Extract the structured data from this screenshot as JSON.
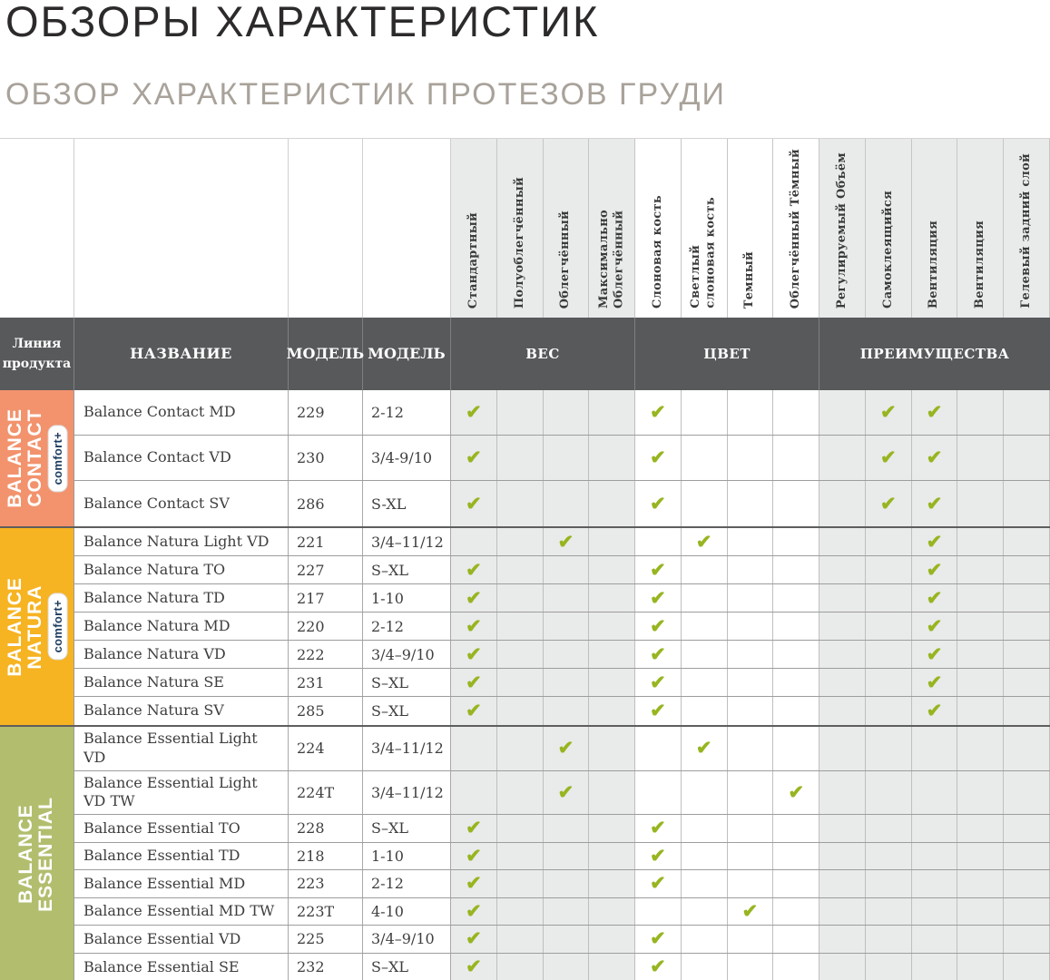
{
  "page": {
    "title": "ОБЗОРЫ ХАРАКТЕРИСТИК",
    "subtitle": "ОБЗОР ХАРАКТЕРИСТИК ПРОТЕЗОВ ГРУДИ"
  },
  "colors": {
    "header_bg": "#58595b",
    "shaded_cell": "#e9eaea",
    "check_green": "#97b520",
    "badge_text_navy": "#1c3b5e",
    "contact_salmon": "#f2936e",
    "natura_amber": "#f6b322",
    "essential_olive": "#b2be6e"
  },
  "icons": {
    "check": "✔"
  },
  "table": {
    "corner": {
      "product_line": "Линия\nпродукта",
      "name": "НАЗВАНИЕ",
      "model_a": "МОДЕЛЬ",
      "model_b": "МОДЕЛЬ"
    },
    "groups": [
      {
        "label": "ВЕС",
        "span": 4
      },
      {
        "label": "ЦВЕТ",
        "span": 4
      },
      {
        "label": "ПРЕИМУЩЕСТВА",
        "span": 5
      }
    ],
    "features": [
      {
        "label": "Стандартный",
        "shaded": true
      },
      {
        "label": "Полуоблегчённый",
        "shaded": true
      },
      {
        "label": "Облегчённый",
        "shaded": true
      },
      {
        "label": "Максимально\nОблегчённый",
        "shaded": true
      },
      {
        "label": "Слоновая кость",
        "shaded": false
      },
      {
        "label": "Светлый\nслоновая кость",
        "shaded": false
      },
      {
        "label": "Темный",
        "shaded": false
      },
      {
        "label": "Облегчённый Тёмный",
        "shaded": false
      },
      {
        "label": "Регулируемый Объём",
        "shaded": true
      },
      {
        "label": "Самоклеящийся",
        "shaded": true
      },
      {
        "label": "Вентиляция",
        "shaded": true
      },
      {
        "label": "Вентиляция",
        "shaded": true
      },
      {
        "label": "Гелевый задний слой",
        "shaded": true
      }
    ],
    "product_lines": [
      {
        "label": "BALANCE\nCONTACT",
        "badge": "comfort+",
        "color": "#f2936e",
        "rows": [
          {
            "name": "Balance Contact MD",
            "model": "229",
            "sizes": "2-12",
            "checks": [
              1,
              5,
              10,
              11
            ]
          },
          {
            "name": "Balance Contact VD",
            "model": "230",
            "sizes": "3/4-9/10",
            "checks": [
              1,
              5,
              10,
              11
            ]
          },
          {
            "name": "Balance Contact SV",
            "model": "286",
            "sizes": "S-XL",
            "checks": [
              1,
              5,
              10,
              11
            ]
          }
        ]
      },
      {
        "label": "BALANCE\nNATURA",
        "badge": "comfort+",
        "color": "#f6b322",
        "rows": [
          {
            "name": "Balance Natura Light VD",
            "model": "221",
            "sizes": "3/4–11/12",
            "checks": [
              3,
              6,
              11
            ]
          },
          {
            "name": "Balance Natura TO",
            "model": "227",
            "sizes": "S–XL",
            "checks": [
              1,
              5,
              11
            ]
          },
          {
            "name": "Balance Natura TD",
            "model": "217",
            "sizes": "1-10",
            "checks": [
              1,
              5,
              11
            ]
          },
          {
            "name": "Balance Natura MD",
            "model": "220",
            "sizes": "2-12",
            "checks": [
              1,
              5,
              11
            ]
          },
          {
            "name": "Balance Natura VD",
            "model": "222",
            "sizes": "3/4–9/10",
            "checks": [
              1,
              5,
              11
            ]
          },
          {
            "name": "Balance Natura SE",
            "model": "231",
            "sizes": "S–XL",
            "checks": [
              1,
              5,
              11
            ]
          },
          {
            "name": "Balance Natura SV",
            "model": "285",
            "sizes": "S–XL",
            "checks": [
              1,
              5,
              11
            ]
          }
        ]
      },
      {
        "label": "BALANCE\nESSENTIAL",
        "badge": null,
        "color": "#b2be6e",
        "rows": [
          {
            "name": "Balance Essential Light VD",
            "model": "224",
            "sizes": "3/4–11/12",
            "checks": [
              3,
              6
            ]
          },
          {
            "name": "Balance Essential Light VD TW",
            "model": "224T",
            "sizes": "3/4–11/12",
            "checks": [
              3,
              8
            ]
          },
          {
            "name": "Balance Essential TO",
            "model": "228",
            "sizes": "S–XL",
            "checks": [
              1,
              5
            ]
          },
          {
            "name": "Balance Essential TD",
            "model": "218",
            "sizes": "1-10",
            "checks": [
              1,
              5
            ]
          },
          {
            "name": "Balance Essential MD",
            "model": "223",
            "sizes": "2-12",
            "checks": [
              1,
              5
            ]
          },
          {
            "name": "Balance Essential MD TW",
            "model": "223T",
            "sizes": "4-10",
            "checks": [
              1,
              7
            ]
          },
          {
            "name": "Balance Essential VD",
            "model": "225",
            "sizes": "3/4–9/10",
            "checks": [
              1,
              5
            ]
          },
          {
            "name": "Balance Essential SE",
            "model": "232",
            "sizes": "S–XL",
            "checks": [
              1,
              5
            ]
          }
        ]
      }
    ]
  }
}
